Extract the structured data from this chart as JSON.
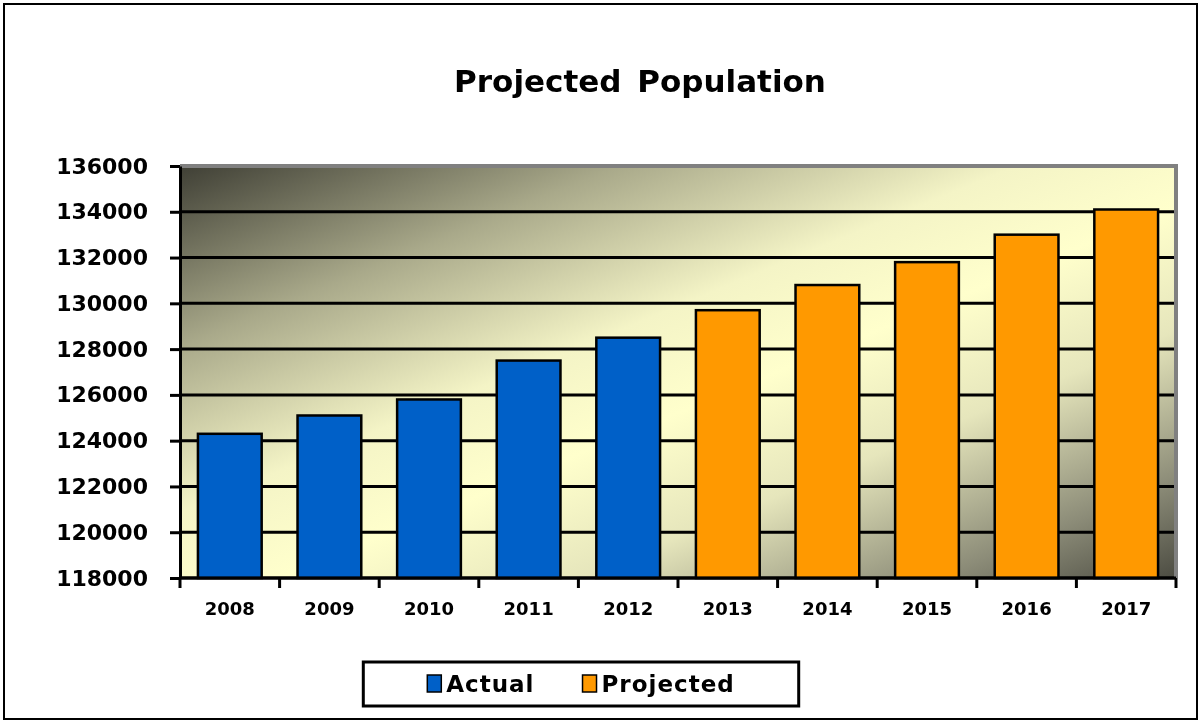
{
  "chart_data": {
    "type": "bar",
    "title": "Projected Population",
    "categories": [
      "2008",
      "2009",
      "2010",
      "2011",
      "2012",
      "2013",
      "2014",
      "2015",
      "2016",
      "2017"
    ],
    "stacked": true,
    "series": [
      {
        "name": "Actual",
        "color": "#0060c8",
        "values": [
          124300,
          125100,
          125800,
          127500,
          128500,
          null,
          null,
          null,
          null,
          null
        ]
      },
      {
        "name": "Projected",
        "color": "#ff9900",
        "values": [
          null,
          null,
          null,
          null,
          null,
          129700,
          130800,
          131800,
          133000,
          134100
        ]
      }
    ],
    "ylim": [
      118000,
      136000
    ],
    "yticks": [
      118000,
      120000,
      122000,
      124000,
      126000,
      128000,
      130000,
      132000,
      134000,
      136000
    ],
    "grid": "y",
    "legend": "bottom"
  }
}
